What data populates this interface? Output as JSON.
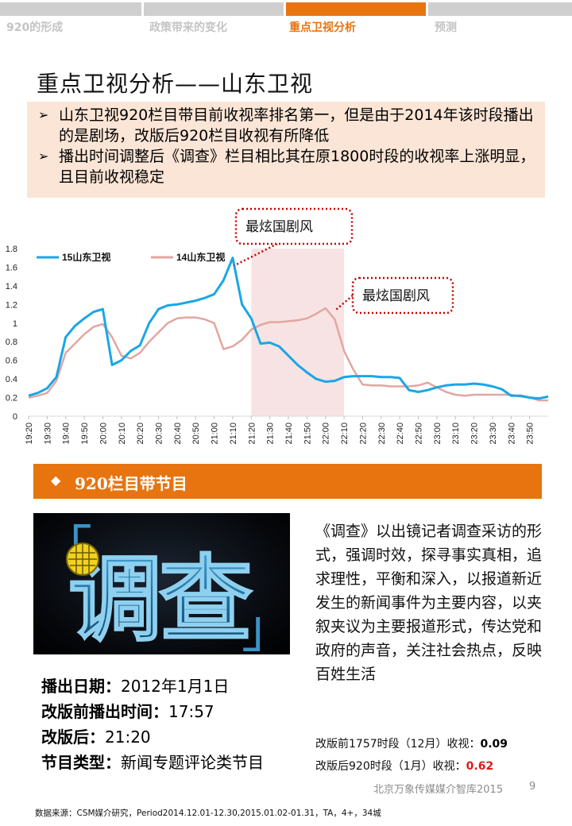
{
  "nav": {
    "tabs": [
      {
        "label": "920的形成",
        "active": false
      },
      {
        "label": "政策带来的变化",
        "active": false
      },
      {
        "label": "重点卫视分析",
        "active": true
      },
      {
        "label": "预测",
        "active": false
      }
    ]
  },
  "page_title": "重点卫视分析——山东卫视",
  "summary": [
    "山东卫视920栏目带目前收视率排名第一，但是由于2014年该时段播出的是剧场，改版后920栏目收视有所降低",
    "播出时间调整后《调查》栏目相比其在原1800时段的收视率上涨明显，且目前收视稳定"
  ],
  "colors": {
    "accent": "#e8740f",
    "series_15": "#1aa6e6",
    "series_14": "#e3a6a0",
    "highlight": "#f7e3e3",
    "value_red": "#e0191b"
  },
  "chart_data": {
    "type": "line",
    "x": [
      "19:20",
      "19:25",
      "19:30",
      "19:35",
      "19:40",
      "19:45",
      "19:50",
      "19:55",
      "20:00",
      "20:05",
      "20:10",
      "20:15",
      "20:20",
      "20:25",
      "20:30",
      "20:35",
      "20:40",
      "20:45",
      "20:50",
      "20:55",
      "21:00",
      "21:05",
      "21:10",
      "21:15",
      "21:20",
      "21:25",
      "21:30",
      "21:35",
      "21:40",
      "21:45",
      "21:50",
      "21:55",
      "22:00",
      "22:05",
      "22:10",
      "22:15",
      "22:20",
      "22:25",
      "22:30",
      "22:35",
      "22:40",
      "22:45",
      "22:50",
      "22:55",
      "23:00",
      "23:05",
      "23:10",
      "23:15",
      "23:20",
      "23:25",
      "23:30",
      "23:35",
      "23:40",
      "23:45",
      "23:50",
      "23:55",
      "24:00"
    ],
    "x_tick_labels": [
      "19:20",
      "19:30",
      "19:40",
      "19:50",
      "20:00",
      "20:10",
      "20:20",
      "20:30",
      "20:40",
      "20:50",
      "21:00",
      "21:10",
      "21:20",
      "21:30",
      "21:40",
      "21:50",
      "22:00",
      "22:10",
      "22:20",
      "22:30",
      "22:40",
      "22:50",
      "23:00",
      "23:10",
      "23:20",
      "23:30",
      "23:40",
      "23:50"
    ],
    "series": [
      {
        "name": "15山东卫视",
        "values": [
          0.22,
          0.25,
          0.3,
          0.42,
          0.85,
          0.97,
          1.05,
          1.12,
          1.15,
          0.55,
          0.6,
          0.7,
          0.76,
          1.0,
          1.15,
          1.19,
          1.2,
          1.22,
          1.24,
          1.27,
          1.31,
          1.46,
          1.7,
          1.2,
          1.05,
          0.78,
          0.79,
          0.75,
          0.65,
          0.55,
          0.47,
          0.4,
          0.37,
          0.38,
          0.42,
          0.43,
          0.43,
          0.43,
          0.42,
          0.42,
          0.41,
          0.28,
          0.26,
          0.28,
          0.31,
          0.33,
          0.34,
          0.34,
          0.35,
          0.34,
          0.32,
          0.29,
          0.22,
          0.22,
          0.2,
          0.19,
          0.21
        ]
      },
      {
        "name": "14山东卫视",
        "values": [
          0.2,
          0.22,
          0.25,
          0.38,
          0.68,
          0.78,
          0.88,
          0.96,
          0.99,
          0.85,
          0.65,
          0.62,
          0.68,
          0.8,
          0.9,
          1.0,
          1.05,
          1.06,
          1.06,
          1.04,
          1.0,
          0.72,
          0.75,
          0.82,
          0.93,
          0.98,
          1.01,
          1.01,
          1.02,
          1.03,
          1.05,
          1.1,
          1.16,
          1.04,
          0.7,
          0.5,
          0.34,
          0.33,
          0.33,
          0.32,
          0.32,
          0.32,
          0.33,
          0.36,
          0.31,
          0.26,
          0.23,
          0.22,
          0.23,
          0.23,
          0.23,
          0.23,
          0.23,
          0.21,
          0.2,
          0.17,
          0.17
        ]
      }
    ],
    "ylim": [
      0,
      1.8
    ],
    "y_ticks": [
      "0",
      "0.2",
      "0.4",
      "0.6",
      "0.8",
      "1",
      "1.2",
      "1.4",
      "1.6",
      "1.8"
    ],
    "highlight_range": [
      "21:20",
      "22:10"
    ],
    "annotations": [
      {
        "text": "最炫国剧风",
        "target_x": "21:10",
        "target_y": 1.6
      },
      {
        "text": "最炫国剧风",
        "target_x": "22:05",
        "target_y": 1.13
      }
    ],
    "legend_position": "top-left"
  },
  "section": {
    "title": "920栏目带节目"
  },
  "logo": {
    "text": "调查",
    "bracket_left": "「",
    "bracket_right": "」"
  },
  "description": "《调查》以出镜记者调查采访的形式，强调时效，探寻事实真相，追求理性，平衡和深入，以报道新近发生的新闻事件为主要内容，以夹叙夹议为主要报道形式，传达党和政府的声音，关注社会热点，反映百姓生活",
  "facts": [
    {
      "label": "播出日期",
      "value": "2012年1月1日"
    },
    {
      "label": "改版前播出时间",
      "value": "17:57"
    },
    {
      "label": "改版后",
      "value": "21:20"
    },
    {
      "label": "节目类型",
      "value": "新闻专题评论类节目"
    }
  ],
  "stats": [
    {
      "label": "改版前1757时段（12月）收视：",
      "value": "0.09"
    },
    {
      "label": "改版后920时段（1月）收视：",
      "value": "0.62"
    }
  ],
  "footer": {
    "publisher": "北京万象传媒媒介智库2015",
    "page_number": "9",
    "source": "数据来源：CSM媒介研究，Period2014.12.01-12.30,2015.01.02-01.31，TA，4+，34城"
  }
}
